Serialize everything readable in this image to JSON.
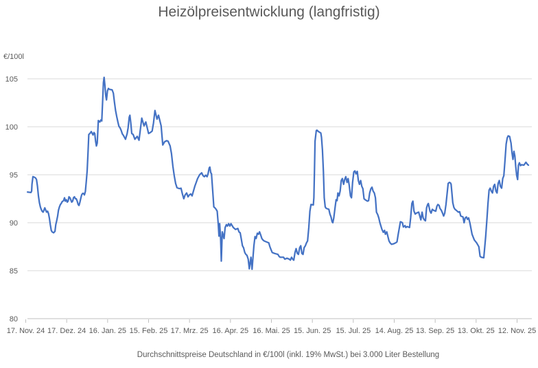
{
  "page": {
    "title": "Heizölpreisentwicklung (langfristig)",
    "caption": "Durchschnittspreise Deutschland in €/100l (inkl. 19% MwSt.) bei 3.000 Liter Bestellung"
  },
  "colors": {
    "line": "#4472C4",
    "text": "#595959",
    "gridline": "#D9D9D9",
    "axis_line": "#BFBFBF",
    "background": "#FFFFFF"
  },
  "chart_data": {
    "type": "line",
    "title": "Heizölpreisentwicklung (langfristig)",
    "ylabel": "€/100l",
    "xlabel": "",
    "legend_position": "none",
    "grid": true,
    "ylim": [
      80,
      105
    ],
    "xlim_days": [
      0,
      370
    ],
    "y_ticks": [
      80,
      85,
      90,
      95,
      100,
      105
    ],
    "x_tick_days": [
      0,
      30,
      60,
      90,
      120,
      150,
      180,
      210,
      240,
      270,
      300,
      330,
      360
    ],
    "x_tick_labels": [
      "17. Nov. 24",
      "17. Dez. 24",
      "16. Jan. 25",
      "15. Feb. 25",
      "17. Mrz. 25",
      "16. Apr. 25",
      "16. Mai. 25",
      "15. Jun. 25",
      "15. Jul. 25",
      "14. Aug. 25",
      "13. Sep. 25",
      "13. Okt. 25",
      "12. Nov. 25"
    ],
    "series_unit": "€/100l",
    "points": [
      [
        1.3,
        93.2
      ],
      [
        3.8,
        93.15
      ],
      [
        4.3,
        93.3
      ],
      [
        4.6,
        94.0
      ],
      [
        5.3,
        94.8
      ],
      [
        6.3,
        94.75
      ],
      [
        7.3,
        94.65
      ],
      [
        7.9,
        94.5
      ],
      [
        8.6,
        93.8
      ],
      [
        9.3,
        92.8
      ],
      [
        10,
        92.1
      ],
      [
        10.7,
        91.65
      ],
      [
        11.3,
        91.4
      ],
      [
        12,
        91.2
      ],
      [
        12.7,
        91.1
      ],
      [
        13.3,
        91.3
      ],
      [
        14,
        91.55
      ],
      [
        14.7,
        91.3
      ],
      [
        15.3,
        91.1
      ],
      [
        16,
        91.2
      ],
      [
        16.7,
        90.95
      ],
      [
        17.3,
        90.5
      ],
      [
        18,
        89.8
      ],
      [
        18.7,
        89.2
      ],
      [
        19.3,
        89.05
      ],
      [
        20.4,
        88.95
      ],
      [
        21.4,
        89.1
      ],
      [
        22,
        89.8
      ],
      [
        22.7,
        90.2
      ],
      [
        23.4,
        90.7
      ],
      [
        24,
        91.3
      ],
      [
        24.7,
        91.65
      ],
      [
        25.4,
        91.9
      ],
      [
        26,
        92
      ],
      [
        26.7,
        92.2
      ],
      [
        27.7,
        92.3
      ],
      [
        28.4,
        92.6
      ],
      [
        29,
        92.25
      ],
      [
        29.7,
        92.4
      ],
      [
        30.4,
        92.15
      ],
      [
        31,
        92.25
      ],
      [
        31.7,
        92.7
      ],
      [
        32.4,
        92.6
      ],
      [
        33,
        92.4
      ],
      [
        33.7,
        92.15
      ],
      [
        34.4,
        92.25
      ],
      [
        35,
        92.6
      ],
      [
        35.7,
        92.7
      ],
      [
        36.4,
        92.5
      ],
      [
        37,
        92.5
      ],
      [
        37.7,
        92.25
      ],
      [
        38.4,
        91.9
      ],
      [
        39,
        91.8
      ],
      [
        39.7,
        92.15
      ],
      [
        40.4,
        92.6
      ],
      [
        41,
        92.9
      ],
      [
        41.7,
        93.05
      ],
      [
        42.4,
        93.05
      ],
      [
        43,
        92.9
      ],
      [
        43.7,
        93.25
      ],
      [
        44.4,
        94.35
      ],
      [
        45,
        95.4
      ],
      [
        45.6,
        97.2
      ],
      [
        46.2,
        99.2
      ],
      [
        47,
        99.3
      ],
      [
        48,
        99.5
      ],
      [
        48.7,
        99.3
      ],
      [
        49.3,
        99.15
      ],
      [
        50,
        99.4
      ],
      [
        50.6,
        99.3
      ],
      [
        51.2,
        98.5
      ],
      [
        51.8,
        98
      ],
      [
        52.4,
        98.3
      ],
      [
        52.8,
        99.5
      ],
      [
        53.2,
        100.65
      ],
      [
        54.3,
        100.5
      ],
      [
        55,
        100.7
      ],
      [
        55.7,
        100.6
      ],
      [
        56.3,
        102.55
      ],
      [
        56.9,
        104.6
      ],
      [
        57.4,
        105.15
      ],
      [
        58,
        104.3
      ],
      [
        58.6,
        103.3
      ],
      [
        59.2,
        102.8
      ],
      [
        59.9,
        103.75
      ],
      [
        60.6,
        104
      ],
      [
        61.3,
        103.9
      ],
      [
        63.3,
        103.85
      ],
      [
        64.2,
        103.5
      ],
      [
        65,
        102.55
      ],
      [
        65.8,
        101.7
      ],
      [
        66.6,
        101.1
      ],
      [
        67.5,
        100.5
      ],
      [
        68.3,
        100.05
      ],
      [
        69.1,
        99.9
      ],
      [
        70,
        99.6
      ],
      [
        70.8,
        99.25
      ],
      [
        71.6,
        99.1
      ],
      [
        73.1,
        98.7
      ],
      [
        74.3,
        99.3
      ],
      [
        75,
        99.9
      ],
      [
        75.8,
        101
      ],
      [
        76.3,
        101.2
      ],
      [
        77,
        100.4
      ],
      [
        77.7,
        99.3
      ],
      [
        78.7,
        99.2
      ],
      [
        80,
        98.7
      ],
      [
        81.7,
        99
      ],
      [
        83,
        98.6
      ],
      [
        85,
        100.9
      ],
      [
        86.7,
        100.1
      ],
      [
        88,
        100.5
      ],
      [
        90,
        99.3
      ],
      [
        91.3,
        99.4
      ],
      [
        92.6,
        99.55
      ],
      [
        93.6,
        100.4
      ],
      [
        94.7,
        101.7
      ],
      [
        96.2,
        100.8
      ],
      [
        97.3,
        101.2
      ],
      [
        99.2,
        100.1
      ],
      [
        100.4,
        98.1
      ],
      [
        101.8,
        98.45
      ],
      [
        103.3,
        98.55
      ],
      [
        104.3,
        98.5
      ],
      [
        105.8,
        98
      ],
      [
        106.8,
        97.2
      ],
      [
        107.8,
        95.9
      ],
      [
        108.8,
        94.9
      ],
      [
        109.8,
        94.1
      ],
      [
        110.8,
        93.65
      ],
      [
        112.8,
        93.55
      ],
      [
        113.8,
        93.6
      ],
      [
        114.8,
        93
      ],
      [
        115.8,
        92.5
      ],
      [
        116.8,
        92.9
      ],
      [
        117.9,
        93.1
      ],
      [
        118.9,
        92.7
      ],
      [
        119.9,
        92.9
      ],
      [
        120.9,
        93
      ],
      [
        121.9,
        92.8
      ],
      [
        122.9,
        93.3
      ],
      [
        123.9,
        93.8
      ],
      [
        124.9,
        94.2
      ],
      [
        125.9,
        94.6
      ],
      [
        127.4,
        95
      ],
      [
        128.9,
        95.2
      ],
      [
        129.9,
        94.9
      ],
      [
        130.9,
        94.8
      ],
      [
        131.9,
        94.95
      ],
      [
        132.9,
        94.8
      ],
      [
        133.6,
        95.1
      ],
      [
        134.4,
        95.7
      ],
      [
        134.9,
        95.8
      ],
      [
        135.6,
        95.2
      ],
      [
        136.1,
        95.1
      ],
      [
        137,
        93.3
      ],
      [
        137.8,
        91.65
      ],
      [
        138.6,
        91.55
      ],
      [
        139.5,
        91.4
      ],
      [
        140.3,
        91.2
      ],
      [
        141.1,
        89.8
      ],
      [
        141.6,
        88.6
      ],
      [
        142.1,
        89.9
      ],
      [
        142.8,
        88.35
      ],
      [
        143.3,
        86
      ],
      [
        144,
        89.05
      ],
      [
        144.5,
        88.8
      ],
      [
        145.3,
        88.35
      ],
      [
        146.1,
        89.5
      ],
      [
        147,
        89.8
      ],
      [
        147.8,
        89.65
      ],
      [
        148.7,
        89.9
      ],
      [
        149.6,
        89.65
      ],
      [
        150.4,
        89.9
      ],
      [
        152.1,
        89.5
      ],
      [
        153.7,
        89.3
      ],
      [
        155.4,
        89.4
      ],
      [
        156.2,
        89.05
      ],
      [
        157.1,
        88.95
      ],
      [
        157.9,
        88.35
      ],
      [
        158.8,
        87.6
      ],
      [
        159.6,
        87.4
      ],
      [
        160.5,
        86.9
      ],
      [
        161.3,
        86.7
      ],
      [
        162.1,
        86.6
      ],
      [
        163,
        86.2
      ],
      [
        163.8,
        85.2
      ],
      [
        165,
        86.4
      ],
      [
        165.8,
        85.15
      ],
      [
        167.2,
        87.6
      ],
      [
        168,
        88.55
      ],
      [
        168.8,
        88.35
      ],
      [
        169.7,
        88.9
      ],
      [
        170.5,
        88.8
      ],
      [
        171.3,
        89.05
      ],
      [
        172.2,
        88.7
      ],
      [
        173,
        88.35
      ],
      [
        173.8,
        88.2
      ],
      [
        174.7,
        88.1
      ],
      [
        176.4,
        88
      ],
      [
        178.1,
        87.9
      ],
      [
        178.9,
        87.5
      ],
      [
        179.7,
        87.2
      ],
      [
        180.6,
        86.9
      ],
      [
        182.3,
        86.8
      ],
      [
        184.8,
        86.7
      ],
      [
        185.6,
        86.5
      ],
      [
        186.4,
        86.4
      ],
      [
        188.9,
        86.4
      ],
      [
        189.8,
        86.2
      ],
      [
        191.4,
        86.3
      ],
      [
        193.1,
        86.2
      ],
      [
        193.9,
        86.1
      ],
      [
        194.8,
        86.4
      ],
      [
        195.6,
        86.2
      ],
      [
        196.4,
        86.1
      ],
      [
        197.3,
        86.9
      ],
      [
        198.1,
        87.3
      ],
      [
        199,
        86.8
      ],
      [
        199.8,
        86.7
      ],
      [
        200.7,
        87.4
      ],
      [
        201.5,
        87.6
      ],
      [
        202.3,
        86.8
      ],
      [
        203.2,
        86.7
      ],
      [
        204,
        87.4
      ],
      [
        204.9,
        87.6
      ],
      [
        205.7,
        87.9
      ],
      [
        206.5,
        88.1
      ],
      [
        207.4,
        89.5
      ],
      [
        208.2,
        91.2
      ],
      [
        209,
        91.9
      ],
      [
        210.7,
        91.85
      ],
      [
        211.1,
        92.6
      ],
      [
        211.5,
        95.2
      ],
      [
        212,
        98.5
      ],
      [
        212.9,
        99.6
      ],
      [
        213.4,
        99.65
      ],
      [
        214.5,
        99.5
      ],
      [
        216.2,
        99.35
      ],
      [
        216.7,
        98.9
      ],
      [
        217.4,
        97.55
      ],
      [
        218.1,
        95.3
      ],
      [
        218.7,
        92.6
      ],
      [
        219.4,
        91.65
      ],
      [
        220.1,
        91.5
      ],
      [
        222.1,
        91.4
      ],
      [
        222.9,
        90.9
      ],
      [
        223.7,
        90.6
      ],
      [
        224.5,
        90.1
      ],
      [
        225,
        90
      ],
      [
        225.7,
        90.5
      ],
      [
        226.7,
        91.65
      ],
      [
        227.4,
        92.4
      ],
      [
        228.1,
        92.3
      ],
      [
        228.7,
        93.1
      ],
      [
        229.6,
        92.8
      ],
      [
        230.4,
        93.3
      ],
      [
        231.2,
        94.4
      ],
      [
        232,
        94.6
      ],
      [
        232.9,
        94
      ],
      [
        233.7,
        94.5
      ],
      [
        234.5,
        94.8
      ],
      [
        235.4,
        94.2
      ],
      [
        236.2,
        94.6
      ],
      [
        237,
        93.9
      ],
      [
        237.9,
        92.8
      ],
      [
        238.7,
        92.6
      ],
      [
        239.5,
        94.2
      ],
      [
        240.4,
        95.3
      ],
      [
        241.2,
        95.4
      ],
      [
        242,
        95.1
      ],
      [
        242.9,
        95.35
      ],
      [
        243.7,
        94.4
      ],
      [
        244.5,
        94
      ],
      [
        245.4,
        94.4
      ],
      [
        246.2,
        93.8
      ],
      [
        247,
        93.55
      ],
      [
        247.9,
        92.5
      ],
      [
        248.7,
        92.4
      ],
      [
        250.4,
        92.25
      ],
      [
        251.2,
        92.3
      ],
      [
        252,
        93.1
      ],
      [
        252.9,
        93.55
      ],
      [
        253.7,
        93.7
      ],
      [
        254.5,
        93.3
      ],
      [
        255.4,
        93.1
      ],
      [
        256.2,
        92.6
      ],
      [
        257,
        91.1
      ],
      [
        257.9,
        90.85
      ],
      [
        258.7,
        90.5
      ],
      [
        259.5,
        90
      ],
      [
        261,
        89.3
      ],
      [
        262,
        89
      ],
      [
        262.9,
        89.2
      ],
      [
        263.5,
        88.8
      ],
      [
        264.5,
        89.05
      ],
      [
        266.2,
        88.1
      ],
      [
        267,
        87.9
      ],
      [
        268,
        87.75
      ],
      [
        269.5,
        87.8
      ],
      [
        271,
        87.9
      ],
      [
        272,
        88
      ],
      [
        272.9,
        88.8
      ],
      [
        274.5,
        90.1
      ],
      [
        275.4,
        90.05
      ],
      [
        276,
        90
      ],
      [
        276.7,
        89.55
      ],
      [
        277.9,
        89.7
      ],
      [
        278.5,
        89.5
      ],
      [
        279.5,
        89.6
      ],
      [
        281.2,
        89.5
      ],
      [
        282,
        90.5
      ],
      [
        282.9,
        92
      ],
      [
        283.7,
        92.25
      ],
      [
        284.5,
        91.2
      ],
      [
        285.4,
        90.9
      ],
      [
        286.2,
        91
      ],
      [
        287.9,
        91.1
      ],
      [
        288.7,
        90.7
      ],
      [
        289.5,
        90.3
      ],
      [
        290.4,
        91.1
      ],
      [
        291.2,
        90.5
      ],
      [
        292,
        90.3
      ],
      [
        292.9,
        90.2
      ],
      [
        293.7,
        91.55
      ],
      [
        294.5,
        91.9
      ],
      [
        295,
        92
      ],
      [
        296.2,
        91.2
      ],
      [
        297,
        91
      ],
      [
        297.9,
        91.4
      ],
      [
        298.7,
        91.3
      ],
      [
        300.4,
        91.2
      ],
      [
        301.2,
        91.7
      ],
      [
        302,
        91.9
      ],
      [
        302.9,
        91.8
      ],
      [
        303.5,
        91.5
      ],
      [
        304.5,
        91.3
      ],
      [
        305.4,
        91
      ],
      [
        306.2,
        90.7
      ],
      [
        307,
        91
      ],
      [
        307.9,
        91.9
      ],
      [
        308.7,
        93
      ],
      [
        309.5,
        94.1
      ],
      [
        310.4,
        94.2
      ],
      [
        311.2,
        94.15
      ],
      [
        311.7,
        94
      ],
      [
        312.9,
        92.1
      ],
      [
        313.7,
        91.6
      ],
      [
        314.5,
        91.4
      ],
      [
        315.4,
        91.3
      ],
      [
        316.2,
        91.2
      ],
      [
        317,
        91.1
      ],
      [
        317.9,
        91.15
      ],
      [
        318.7,
        90.7
      ],
      [
        319.5,
        90.65
      ],
      [
        320.4,
        90.6
      ],
      [
        321.2,
        90
      ],
      [
        322,
        90.5
      ],
      [
        322.9,
        90.6
      ],
      [
        323.7,
        90.35
      ],
      [
        324.5,
        90.5
      ],
      [
        325.4,
        90
      ],
      [
        327,
        88.8
      ],
      [
        328.7,
        88.2
      ],
      [
        330.4,
        87.9
      ],
      [
        332,
        87.5
      ],
      [
        332.9,
        86.5
      ],
      [
        333.7,
        86.4
      ],
      [
        335.6,
        86.35
      ],
      [
        337,
        88.6
      ],
      [
        338,
        90.5
      ],
      [
        338.7,
        92
      ],
      [
        339.5,
        93.4
      ],
      [
        340.3,
        93.6
      ],
      [
        341.1,
        93.3
      ],
      [
        342,
        93.1
      ],
      [
        342.8,
        93.8
      ],
      [
        343.6,
        94
      ],
      [
        344.5,
        93.3
      ],
      [
        345.3,
        93.1
      ],
      [
        346.1,
        94.1
      ],
      [
        347,
        94.4
      ],
      [
        347.8,
        93.8
      ],
      [
        348.7,
        93.6
      ],
      [
        349.5,
        94.6
      ],
      [
        350.3,
        94.9
      ],
      [
        351.1,
        96.4
      ],
      [
        352,
        98.2
      ],
      [
        352.8,
        98.85
      ],
      [
        353.5,
        99.05
      ],
      [
        354.5,
        99
      ],
      [
        355.6,
        98.3
      ],
      [
        356.3,
        97.3
      ],
      [
        357,
        96.6
      ],
      [
        357.7,
        97.45
      ],
      [
        358.4,
        96.95
      ],
      [
        359,
        95.9
      ],
      [
        359.7,
        94.95
      ],
      [
        360.4,
        94.5
      ],
      [
        361,
        96
      ],
      [
        361.7,
        96.25
      ],
      [
        362.5,
        95.95
      ],
      [
        363.3,
        96.05
      ],
      [
        365,
        96
      ],
      [
        366.5,
        96.3
      ],
      [
        367.5,
        96.1
      ],
      [
        368.3,
        96
      ]
    ]
  }
}
